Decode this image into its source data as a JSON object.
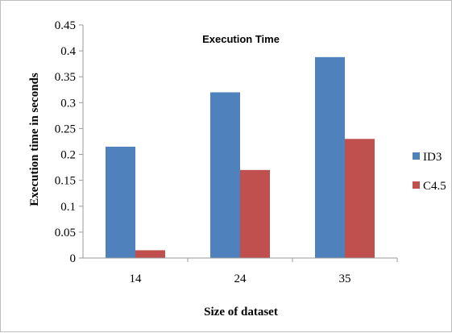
{
  "chart_data": {
    "type": "bar",
    "title": "Execution Time",
    "xlabel": "Size of dataset",
    "ylabel": "Execution time in seconds",
    "categories": [
      "14",
      "24",
      "35"
    ],
    "series": [
      {
        "name": "ID3",
        "values": [
          0.215,
          0.32,
          0.388
        ],
        "color": "#4f81bd"
      },
      {
        "name": "C4.5",
        "values": [
          0.015,
          0.17,
          0.23
        ],
        "color": "#c0504d"
      }
    ],
    "ylim": [
      0,
      0.45
    ],
    "yticks": [
      "0",
      "0.05",
      "0.1",
      "0.15",
      "0.2",
      "0.25",
      "0.3",
      "0.35",
      "0.4",
      "0.45"
    ],
    "grid": false,
    "legend_position": "right"
  }
}
